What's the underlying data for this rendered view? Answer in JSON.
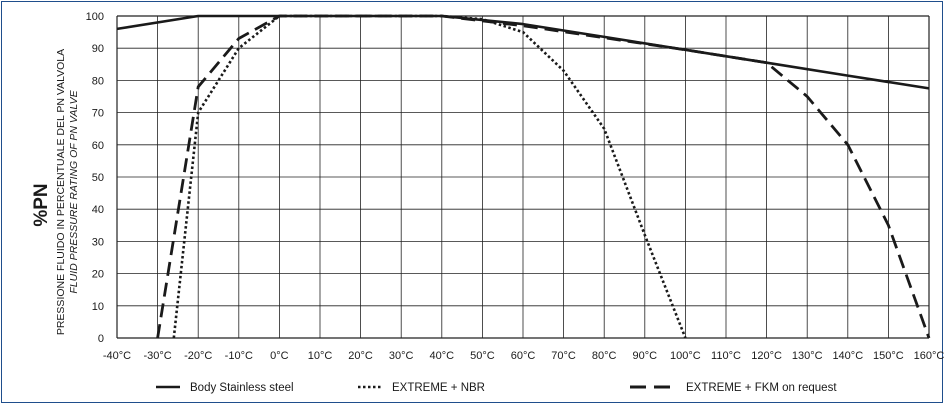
{
  "chart_data": {
    "type": "line",
    "ylabel_main": "%PN",
    "ylabel_line1": "PRESSIONE FLUIDO IN PERCENTUALE DEL PN VALVOLA",
    "ylabel_line2": "FLUID PRESSURE RATING OF PN VALVE",
    "x_ticks": [
      "-40°C",
      "-30°C",
      "-20°C",
      "-10°C",
      "0°C",
      "10°C",
      "20°C",
      "30°C",
      "40°C",
      "50°C",
      "60°C",
      "70°C",
      "80°C",
      "90°C",
      "100°C",
      "110°C",
      "120°C",
      "130°C",
      "140°C",
      "150°C",
      "160°C"
    ],
    "y_ticks": [
      "0",
      "10",
      "20",
      "30",
      "40",
      "50",
      "60",
      "70",
      "80",
      "90",
      "100"
    ],
    "xlim": [
      -40,
      160
    ],
    "ylim": [
      0,
      100
    ],
    "grid": true,
    "legend_position": "bottom",
    "series": [
      {
        "name": "Body Stainless steel",
        "style": "solid",
        "color": "#1a1a1a",
        "points": [
          [
            -40,
            96
          ],
          [
            -20,
            100
          ],
          [
            40,
            100
          ],
          [
            60,
            97.5
          ],
          [
            80,
            93.5
          ],
          [
            100,
            89.5
          ],
          [
            120,
            85.5
          ],
          [
            140,
            81.5
          ],
          [
            160,
            77.5
          ]
        ]
      },
      {
        "name": "EXTREME + NBR",
        "style": "dotted",
        "color": "#1a1a1a",
        "points": [
          [
            -26,
            0
          ],
          [
            -20,
            70
          ],
          [
            -10,
            90
          ],
          [
            0,
            100
          ],
          [
            40,
            100
          ],
          [
            50,
            99
          ],
          [
            60,
            95
          ],
          [
            70,
            83
          ],
          [
            80,
            65
          ],
          [
            90,
            32
          ],
          [
            100,
            0
          ]
        ]
      },
      {
        "name": "EXTREME + FKM on request",
        "style": "dashed",
        "color": "#1a1a1a",
        "points": [
          [
            -30,
            0
          ],
          [
            -20,
            78
          ],
          [
            -10,
            93
          ],
          [
            0,
            100
          ],
          [
            40,
            100
          ],
          [
            60,
            97
          ],
          [
            100,
            89.5
          ],
          [
            120,
            85.5
          ],
          [
            130,
            75
          ],
          [
            140,
            60
          ],
          [
            150,
            35
          ],
          [
            160,
            0
          ]
        ]
      }
    ]
  }
}
